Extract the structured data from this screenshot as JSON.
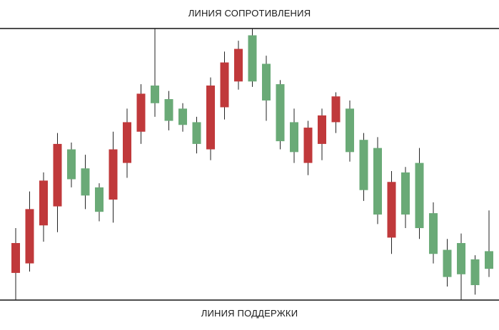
{
  "chart_data": {
    "type": "candlestick",
    "resistance": {
      "label": "ЛИНИЯ СОПРОТИВЛЕНИЯ",
      "value": 100
    },
    "support": {
      "label": "ЛИНИЯ ПОДДЕРЖКИ",
      "value": 0
    },
    "ylim": [
      0,
      100
    ],
    "grid": false,
    "legend": "none",
    "colors": {
      "bullish": "#6aaa77",
      "bearish": "#c0393b",
      "wick": "#222222",
      "line": "#111111"
    },
    "candles": [
      {
        "open": 10.0,
        "close": 21.0,
        "high": 26.5,
        "low": 0.0,
        "dir": "bear"
      },
      {
        "open": 13.5,
        "close": 33.5,
        "high": 40.0,
        "low": 10.5,
        "dir": "bear"
      },
      {
        "open": 27.5,
        "close": 44.0,
        "high": 47.0,
        "low": 21.5,
        "dir": "bear"
      },
      {
        "open": 34.5,
        "close": 57.5,
        "high": 61.5,
        "low": 25.0,
        "dir": "bear"
      },
      {
        "open": 55.5,
        "close": 44.5,
        "high": 58.0,
        "low": 41.5,
        "dir": "bull"
      },
      {
        "open": 48.5,
        "close": 38.5,
        "high": 53.5,
        "low": 33.5,
        "dir": "bull"
      },
      {
        "open": 41.5,
        "close": 32.5,
        "high": 43.0,
        "low": 29.0,
        "dir": "bull"
      },
      {
        "open": 37.0,
        "close": 55.5,
        "high": 62.0,
        "low": 28.5,
        "dir": "bear"
      },
      {
        "open": 50.5,
        "close": 65.5,
        "high": 70.5,
        "low": 45.0,
        "dir": "bear"
      },
      {
        "open": 62.0,
        "close": 76.0,
        "high": 79.5,
        "low": 57.5,
        "dir": "bear"
      },
      {
        "open": 79.0,
        "close": 72.5,
        "high": 100.0,
        "low": 67.5,
        "dir": "bull"
      },
      {
        "open": 74.0,
        "close": 66.0,
        "high": 77.0,
        "low": 62.5,
        "dir": "bull"
      },
      {
        "open": 70.5,
        "close": 64.5,
        "high": 72.5,
        "low": 62.0,
        "dir": "bull"
      },
      {
        "open": 65.5,
        "close": 57.5,
        "high": 67.5,
        "low": 54.0,
        "dir": "bull"
      },
      {
        "open": 55.5,
        "close": 79.0,
        "high": 82.0,
        "low": 51.5,
        "dir": "bear"
      },
      {
        "open": 71.0,
        "close": 87.5,
        "high": 91.5,
        "low": 66.5,
        "dir": "bear"
      },
      {
        "open": 80.5,
        "close": 92.5,
        "high": 95.5,
        "low": 77.5,
        "dir": "bear"
      },
      {
        "open": 97.5,
        "close": 80.5,
        "high": 100.0,
        "low": 78.5,
        "dir": "bull"
      },
      {
        "open": 87.0,
        "close": 73.5,
        "high": 90.0,
        "low": 66.0,
        "dir": "bull"
      },
      {
        "open": 79.5,
        "close": 58.5,
        "high": 81.0,
        "low": 55.5,
        "dir": "bull"
      },
      {
        "open": 65.5,
        "close": 54.5,
        "high": 70.5,
        "low": 50.5,
        "dir": "bull"
      },
      {
        "open": 50.5,
        "close": 63.5,
        "high": 66.0,
        "low": 46.0,
        "dir": "bear"
      },
      {
        "open": 57.5,
        "close": 68.0,
        "high": 70.5,
        "low": 51.5,
        "dir": "bear"
      },
      {
        "open": 65.5,
        "close": 75.0,
        "high": 76.5,
        "low": 61.5,
        "dir": "bear"
      },
      {
        "open": 70.5,
        "close": 54.5,
        "high": 73.5,
        "low": 51.0,
        "dir": "bull"
      },
      {
        "open": 59.0,
        "close": 40.5,
        "high": 61.5,
        "low": 36.5,
        "dir": "bull"
      },
      {
        "open": 56.0,
        "close": 31.5,
        "high": 60.0,
        "low": 28.0,
        "dir": "bull"
      },
      {
        "open": 23.0,
        "close": 43.5,
        "high": 47.5,
        "low": 17.0,
        "dir": "bear"
      },
      {
        "open": 47.0,
        "close": 31.5,
        "high": 49.0,
        "low": 26.5,
        "dir": "bull"
      },
      {
        "open": 50.5,
        "close": 26.5,
        "high": 56.0,
        "low": 22.5,
        "dir": "bull"
      },
      {
        "open": 32.0,
        "close": 17.0,
        "high": 36.0,
        "low": 13.5,
        "dir": "bull"
      },
      {
        "open": 18.5,
        "close": 8.5,
        "high": 22.5,
        "low": 5.0,
        "dir": "bull"
      },
      {
        "open": 21.0,
        "close": 9.5,
        "high": 24.5,
        "low": 0.0,
        "dir": "bull"
      },
      {
        "open": 15.0,
        "close": 5.5,
        "high": 16.5,
        "low": 2.0,
        "dir": "bull"
      },
      {
        "open": 18.0,
        "close": 11.5,
        "high": 33.0,
        "low": 8.5,
        "dir": "bull"
      }
    ]
  }
}
